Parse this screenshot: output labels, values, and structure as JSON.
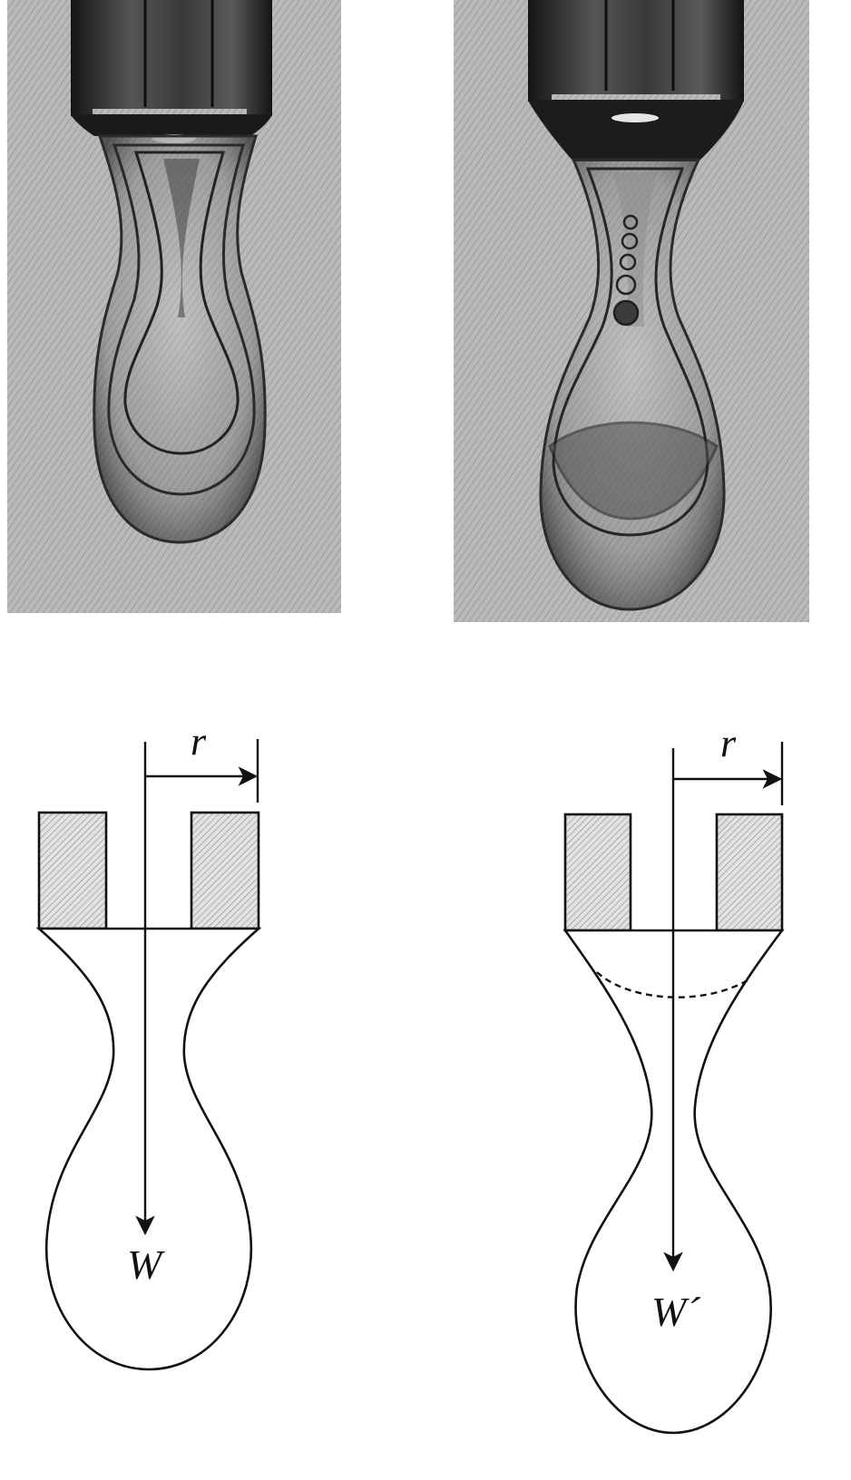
{
  "panels": [
    {
      "id": "left",
      "radius_label": "r",
      "weight_label": "W",
      "has_dashed_neck_line": false
    },
    {
      "id": "right",
      "radius_label": "r",
      "weight_label": "W´",
      "has_dashed_neck_line": true
    }
  ],
  "colors": {
    "ink": "#111111",
    "photo_background": "#b8b8b8",
    "hatch_fill": "#cfcfcf"
  }
}
